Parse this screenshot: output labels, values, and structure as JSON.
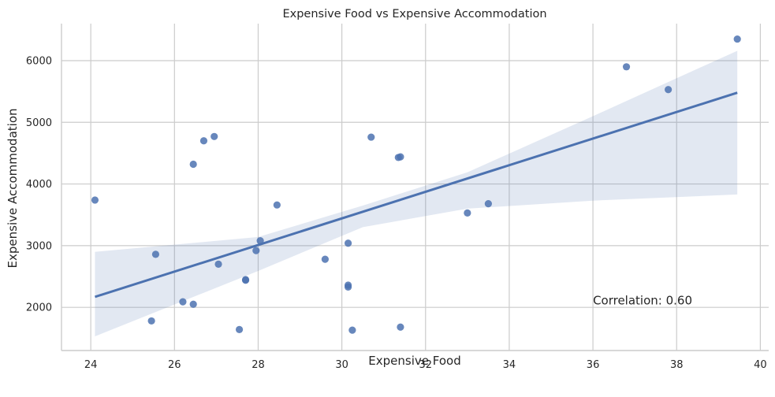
{
  "chart_data": {
    "type": "scatter",
    "title": "Expensive Food vs Expensive Accommodation",
    "xlabel": "Expensive Food",
    "ylabel": "Expensive Accommodation",
    "xlim": [
      23.3,
      40.2
    ],
    "ylim": [
      1300,
      6600
    ],
    "xticks": [
      24,
      26,
      28,
      30,
      32,
      34,
      36,
      38,
      40
    ],
    "yticks": [
      2000,
      3000,
      4000,
      5000,
      6000
    ],
    "grid": true,
    "annotation": "Correlation: 0.60",
    "annotation_pos": [
      36,
      2050
    ],
    "points": [
      {
        "x": 24.1,
        "y": 3740
      },
      {
        "x": 25.45,
        "y": 1780
      },
      {
        "x": 25.55,
        "y": 2860
      },
      {
        "x": 26.2,
        "y": 2090
      },
      {
        "x": 26.45,
        "y": 2050
      },
      {
        "x": 26.45,
        "y": 4320
      },
      {
        "x": 26.7,
        "y": 4700
      },
      {
        "x": 26.95,
        "y": 4770
      },
      {
        "x": 27.05,
        "y": 2700
      },
      {
        "x": 27.55,
        "y": 1640
      },
      {
        "x": 27.7,
        "y": 2440
      },
      {
        "x": 27.7,
        "y": 2450
      },
      {
        "x": 27.95,
        "y": 2920
      },
      {
        "x": 28.05,
        "y": 3080
      },
      {
        "x": 28.45,
        "y": 3660
      },
      {
        "x": 29.6,
        "y": 2780
      },
      {
        "x": 30.15,
        "y": 3040
      },
      {
        "x": 30.15,
        "y": 2360
      },
      {
        "x": 30.15,
        "y": 2330
      },
      {
        "x": 30.25,
        "y": 1630
      },
      {
        "x": 30.7,
        "y": 4760
      },
      {
        "x": 31.35,
        "y": 4430
      },
      {
        "x": 31.4,
        "y": 4440
      },
      {
        "x": 31.4,
        "y": 1680
      },
      {
        "x": 33.0,
        "y": 3530
      },
      {
        "x": 33.5,
        "y": 3680
      },
      {
        "x": 36.8,
        "y": 5900
      },
      {
        "x": 37.8,
        "y": 5530
      },
      {
        "x": 39.45,
        "y": 6350
      }
    ],
    "regression": {
      "x0": 24.1,
      "y0": 2170,
      "x1": 39.45,
      "y1": 5480,
      "ci_lower": [
        [
          24.1,
          1530
        ],
        [
          28.0,
          2590
        ],
        [
          30.5,
          3300
        ],
        [
          33.0,
          3600
        ],
        [
          36.0,
          3730
        ],
        [
          39.45,
          3830
        ]
      ],
      "ci_upper": [
        [
          24.1,
          2900
        ],
        [
          28.0,
          3140
        ],
        [
          30.5,
          3650
        ],
        [
          33.0,
          4190
        ],
        [
          36.0,
          5100
        ],
        [
          39.45,
          6160
        ]
      ]
    }
  }
}
